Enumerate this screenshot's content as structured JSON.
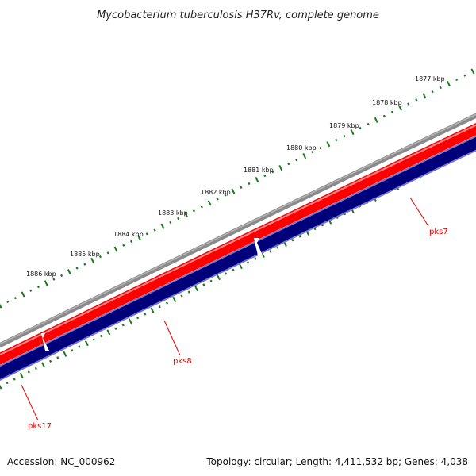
{
  "title": "Mycobacterium tuberculosis H37Rv, complete genome",
  "footer": {
    "accession": "Accession: NC_000962",
    "summary": "Topology: circular; Length: 4,411,532 bp; Genes: 4,038"
  },
  "ruler": {
    "labels": [
      "1877 kbp",
      "1878 kbp",
      "1879 kbp",
      "1880 kbp",
      "1881 kbp",
      "1882 kbp",
      "1883 kbp",
      "1884 kbp",
      "1885 kbp",
      "1886 kbp"
    ]
  },
  "genes": [
    {
      "name": "pks7"
    },
    {
      "name": "pks8"
    },
    {
      "name": "pks17"
    }
  ],
  "colors": {
    "backbone": "#8a8a8a",
    "forward_strand": "#ff0000",
    "reverse_strand": "#00007a",
    "reverse_border": "#7777cc",
    "ticks": "#1a7a1a",
    "gene_label": "#ee0000"
  }
}
